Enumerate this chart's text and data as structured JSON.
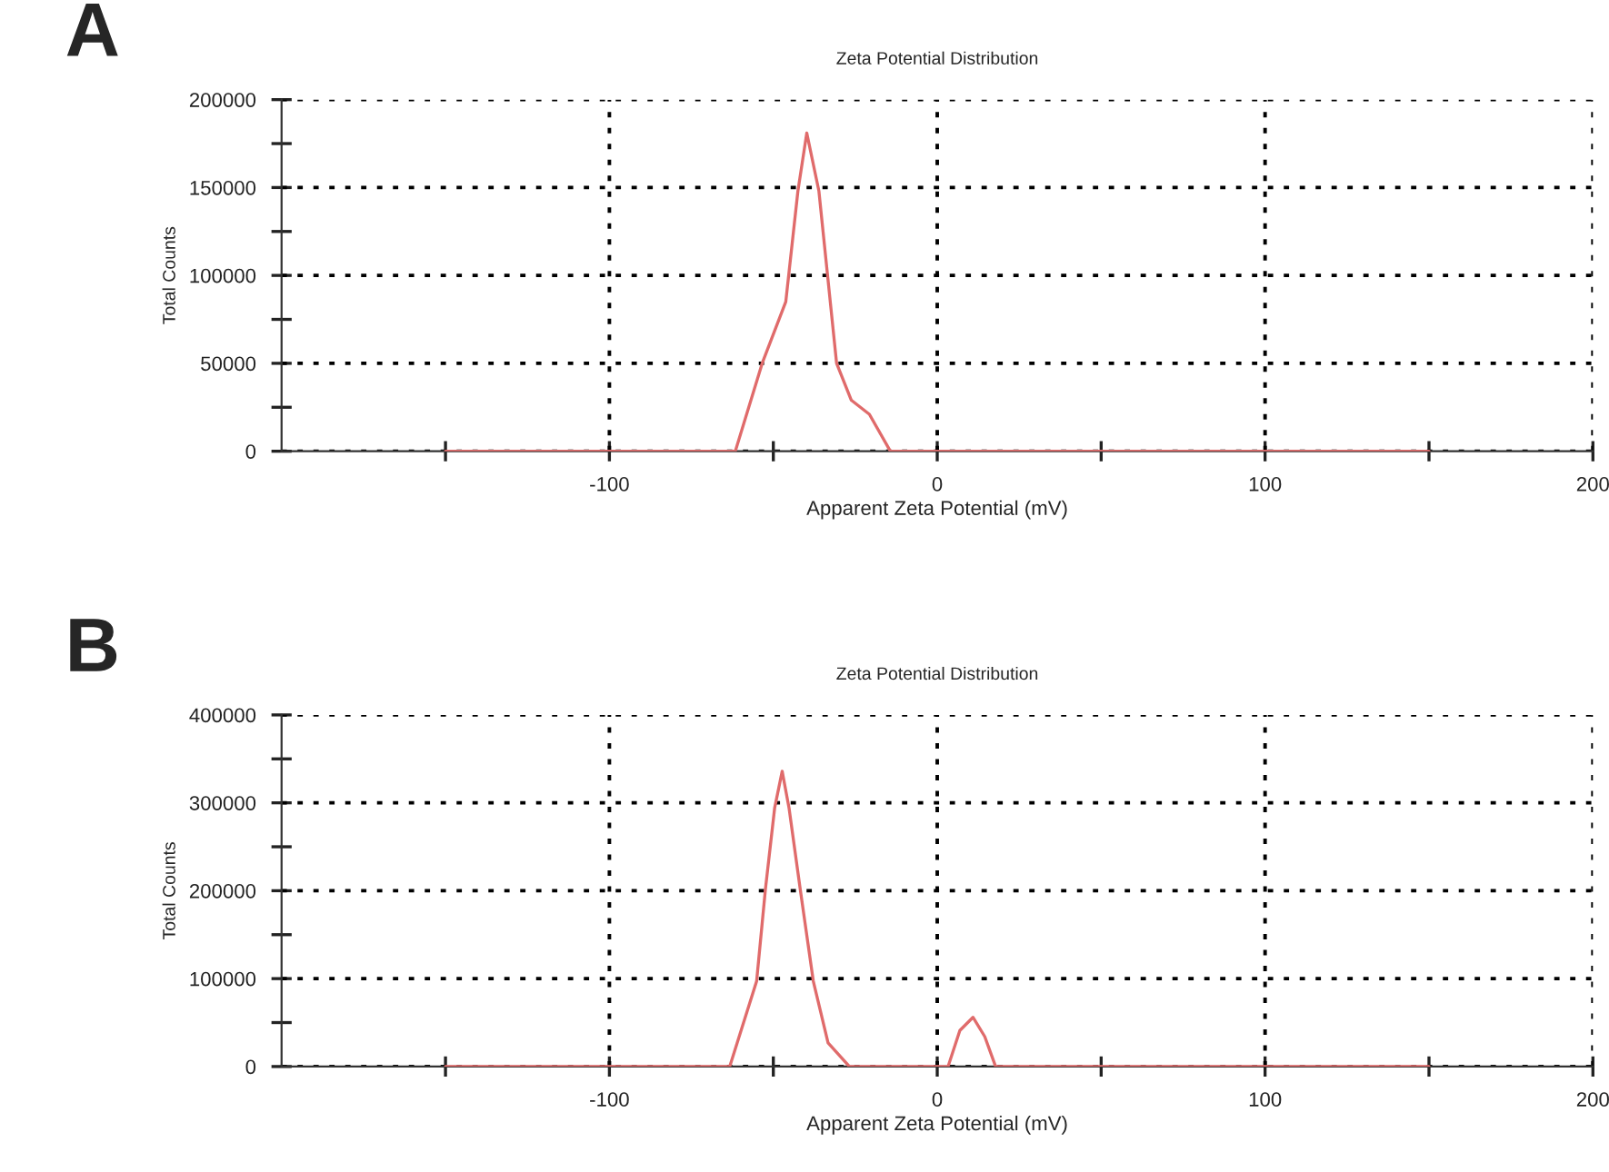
{
  "chart_data": [
    {
      "type": "line",
      "title": "Zeta Potential Distribution",
      "xlabel": "Apparent Zeta Potential (mV)",
      "ylabel": "Total Counts",
      "annotations": [
        "A"
      ],
      "series": [
        {
          "color": "#e06b6b",
          "x": [
            -150,
            -61.6,
            -53.4,
            -46.2,
            -42.5,
            -39.8,
            -36.1,
            -33.4,
            -30.7,
            -26.2,
            -20.7,
            -14.3,
            150
          ],
          "values": [
            0,
            0,
            50000,
            85000,
            148000,
            181000,
            148000,
            99000,
            50000,
            29000,
            21000,
            0,
            0
          ]
        }
      ],
      "xlim": [
        -200,
        200
      ],
      "xticks": [
        {
          "value": -150,
          "label": null
        },
        -100,
        {
          "value": -50,
          "label": null
        },
        0,
        {
          "value": 50,
          "label": null
        },
        100,
        {
          "value": 150,
          "label": null
        },
        200
      ],
      "ylim": [
        0,
        200000
      ],
      "yticks": [
        0,
        {
          "value": 25000,
          "label": null
        },
        50000,
        {
          "value": 75000,
          "label": null
        },
        100000,
        {
          "value": 125000,
          "label": null
        },
        150000,
        {
          "value": 175000,
          "label": null
        },
        200000
      ],
      "grid": true,
      "line_style": "solid",
      "marker": "none"
    },
    {
      "type": "line",
      "title": "Zeta Potential Distribution",
      "xlabel": "Apparent Zeta Potential (mV)",
      "ylabel": "Total Counts",
      "annotations": [
        "B"
      ],
      "series": [
        {
          "color": "#e06b6b",
          "x": [
            -150,
            -63.3,
            -55.1,
            -52.4,
            -49.6,
            -47.3,
            -45.2,
            -41.8,
            -37.8,
            -33.3,
            -26.8,
            3.3,
            6.9,
            10.9,
            14.5,
            17.8,
            150
          ],
          "values": [
            0,
            0,
            97000,
            202000,
            294000,
            336000,
            294000,
            202000,
            97000,
            27000,
            0,
            0,
            41000,
            56000,
            34000,
            0,
            0
          ]
        }
      ],
      "xlim": [
        -200,
        200
      ],
      "xticks": [
        {
          "value": -150,
          "label": null
        },
        -100,
        {
          "value": -50,
          "label": null
        },
        0,
        {
          "value": 50,
          "label": null
        },
        100,
        {
          "value": 150,
          "label": null
        },
        200
      ],
      "ylim": [
        0,
        400000
      ],
      "yticks": [
        0,
        {
          "value": 50000,
          "label": null
        },
        100000,
        {
          "value": 150000,
          "label": null
        },
        200000,
        {
          "value": 250000,
          "label": null
        },
        300000,
        {
          "value": 350000,
          "label": null
        },
        400000
      ],
      "grid": true,
      "line_style": "solid",
      "marker": "none"
    }
  ]
}
